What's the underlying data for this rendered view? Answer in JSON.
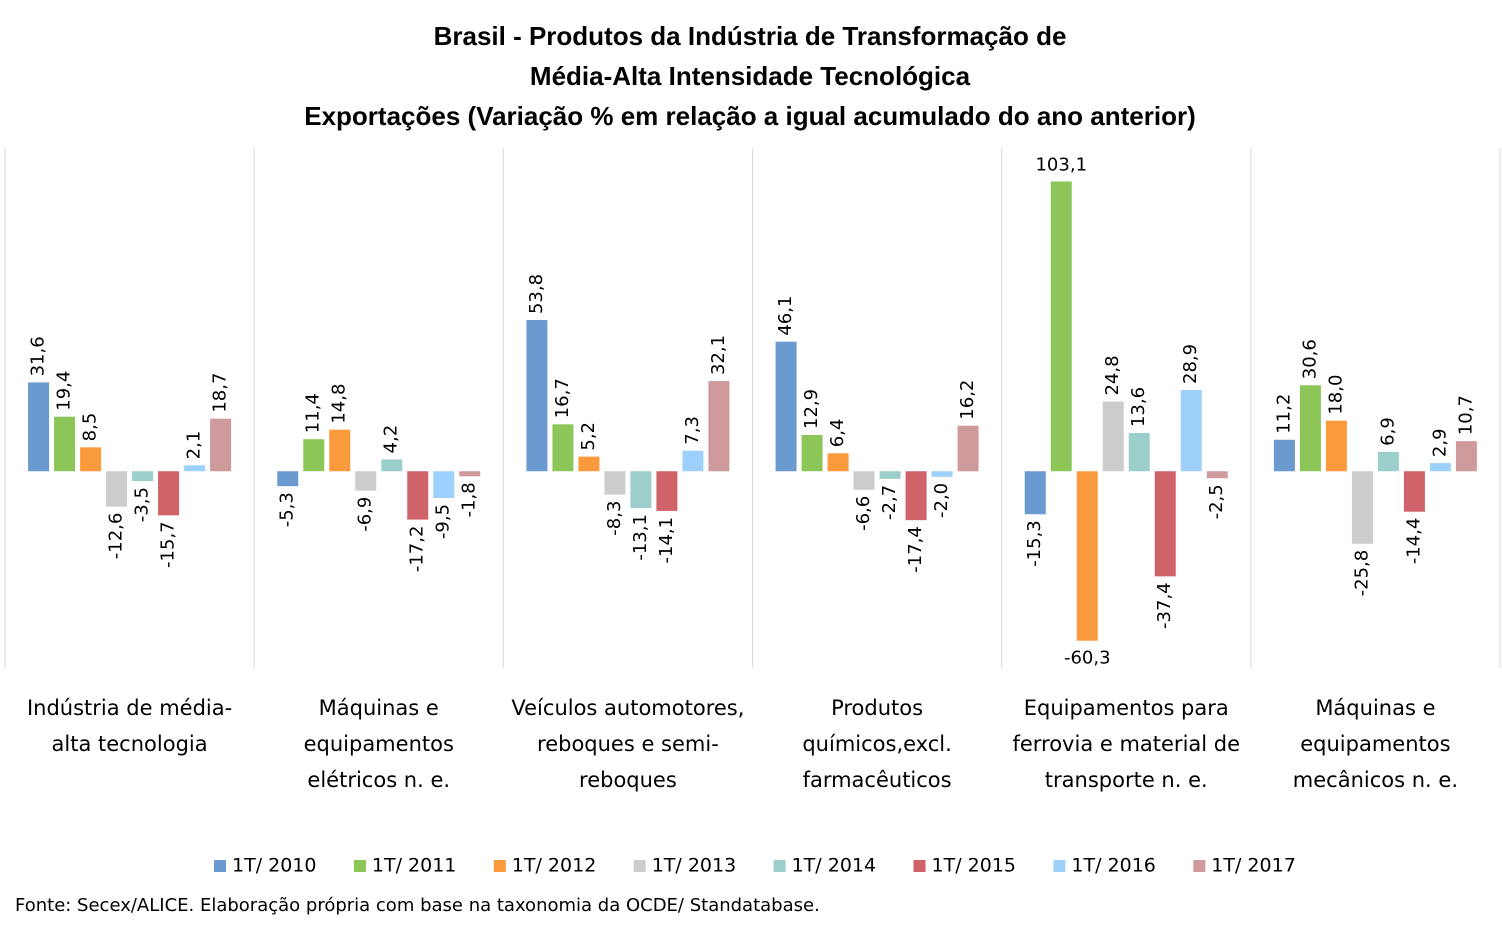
{
  "chart_data": {
    "type": "bar",
    "title": [
      "Brasil - Produtos da Indústria de Transformação de",
      "Média-Alta Intensidade Tecnológica",
      "Exportações (Variação % em relação a igual acumulado do ano anterior)"
    ],
    "source": "Fonte: Secex/ALICE. Elaboração própria com base na taxonomia da OCDE/ Standatabase.",
    "categories": [
      "Indústria de média-alta tecnologia",
      "Máquinas e equipamentos elétricos n. e.",
      "Veículos automotores, reboques e semi-reboques",
      "Produtos químicos,excl. farmacêuticos",
      "Equipamentos para ferrovia e material de transporte n. e.",
      "Máquinas e equipamentos mecânicos  n. e."
    ],
    "ylim": [
      -70,
      115
    ],
    "legend": "bottom",
    "series": [
      {
        "name": "1T/ 2010",
        "color": "#6a9ad0",
        "values": [
          31.6,
          -5.3,
          53.8,
          46.1,
          -15.3,
          11.2
        ],
        "value_labels": [
          "31,6",
          "-5,3",
          "53,8",
          "46,1",
          "-15,3",
          "11,2"
        ]
      },
      {
        "name": "1T/ 2011",
        "color": "#8dc658",
        "values": [
          19.4,
          11.4,
          16.7,
          12.9,
          103.1,
          30.6
        ],
        "value_labels": [
          "19,4",
          "11,4",
          "16,7",
          "12,9",
          "103,1",
          "30,6"
        ]
      },
      {
        "name": "1T/ 2012",
        "color": "#fa9a3c",
        "values": [
          8.5,
          14.8,
          5.2,
          6.4,
          -60.3,
          18.0
        ],
        "value_labels": [
          "8,5",
          "14,8",
          "5,2",
          "6,4",
          "-60,3",
          "18,0"
        ]
      },
      {
        "name": "1T/ 2013",
        "color": "#cccccc",
        "values": [
          -12.6,
          -6.9,
          -8.3,
          -6.6,
          24.8,
          -25.8
        ],
        "value_labels": [
          "-12,6",
          "-6,9",
          "-8,3",
          "-6,6",
          "24,8",
          "-25,8"
        ]
      },
      {
        "name": "1T/ 2014",
        "color": "#9ccfcb",
        "values": [
          -3.5,
          4.2,
          -13.1,
          -2.7,
          13.6,
          6.9
        ],
        "value_labels": [
          "-3,5",
          "4,2",
          "-13,1",
          "-2,7",
          "13,6",
          "6,9"
        ]
      },
      {
        "name": "1T/ 2015",
        "color": "#d0626a",
        "values": [
          -15.7,
          -17.2,
          -14.1,
          -17.4,
          -37.4,
          -14.4
        ],
        "value_labels": [
          "-15,7",
          "-17,2",
          "-14,1",
          "-17,4",
          "-37,4",
          "-14,4"
        ]
      },
      {
        "name": "1T/ 2016",
        "color": "#9dd0fb",
        "values": [
          2.1,
          -9.5,
          7.3,
          -2.0,
          28.9,
          2.9
        ],
        "value_labels": [
          "2,1",
          "-9,5",
          "7,3",
          "-2,0",
          "28,9",
          "2,9"
        ]
      },
      {
        "name": "1T/ 2017",
        "color": "#cf9a9c",
        "values": [
          18.7,
          -1.8,
          32.1,
          16.2,
          -2.5,
          10.7
        ],
        "value_labels": [
          "18,7",
          "-1,8",
          "32,1",
          "16,2",
          "-2,5",
          "10,7"
        ]
      }
    ]
  }
}
